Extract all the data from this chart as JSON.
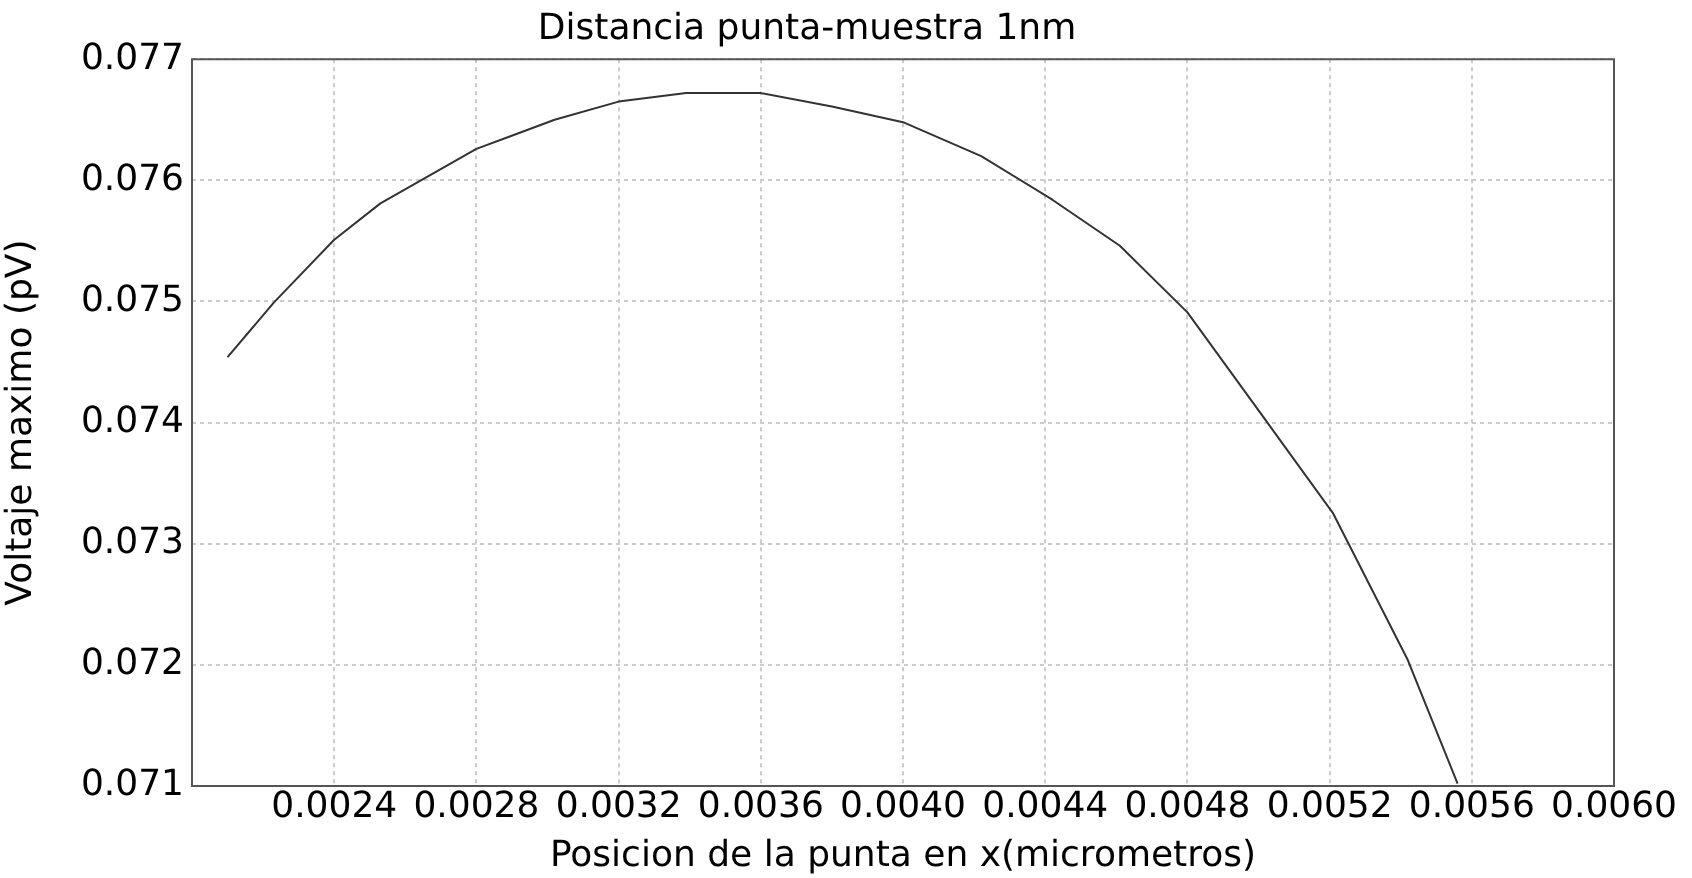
{
  "chart_data": {
    "type": "line",
    "title": "Distancia punta-muestra 1nm",
    "xlabel": "Posicion de la punta en x(micrometros)",
    "ylabel": "Voltaje maximo (pV)",
    "xlim": [
      0.002,
      0.006
    ],
    "xticks": [
      0.0024,
      0.0028,
      0.0032,
      0.0036,
      {
        "value": 0.004,
        "label": "0.0040"
      },
      {
        "value": 0.0044,
        "label": "0.0044"
      },
      0.0048,
      0.0052,
      0.0056,
      {
        "value": 0.006,
        "label": "0.0060"
      }
    ],
    "ylim": [
      0.071,
      0.077
    ],
    "yticks": [
      0.071,
      0.072,
      0.073,
      0.074,
      0.075,
      0.076,
      0.077
    ],
    "grid": true,
    "legend": false,
    "marker": "none",
    "line_style": "solid",
    "series": [
      {
        "color": "#333333",
        "x": [
          0.0021,
          0.00223,
          0.0024,
          0.00253,
          0.0028,
          0.00302,
          0.0032,
          0.00339,
          0.0036,
          0.0038,
          0.004,
          0.00422,
          0.00442,
          0.00461,
          0.0048,
          0.00502,
          0.00521,
          0.00542,
          0.00556
        ],
        "values": [
          0.07454,
          0.07499,
          0.07551,
          0.07581,
          0.07626,
          0.0765,
          0.07665,
          0.07672,
          0.07672,
          0.07661,
          0.07648,
          0.0762,
          0.07584,
          0.07546,
          0.07491,
          0.07402,
          0.07325,
          0.07204,
          0.07102
        ]
      }
    ]
  }
}
